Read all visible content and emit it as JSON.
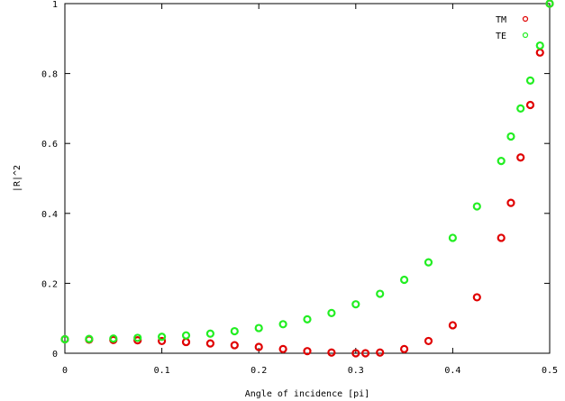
{
  "chart_data": {
    "type": "scatter",
    "title": "",
    "xlabel": "Angle of incidence [pi]",
    "ylabel": "|R|^2",
    "xlim": [
      0,
      0.5
    ],
    "ylim": [
      0,
      1
    ],
    "xticks": [
      "0",
      "0.1",
      "0.2",
      "0.3",
      "0.4",
      "0.5"
    ],
    "yticks": [
      "0",
      "0.2",
      "0.4",
      "0.6",
      "0.8",
      "1"
    ],
    "grid": false,
    "legend_position": "top-right",
    "series": [
      {
        "name": "TM",
        "color": "#e00000",
        "marker": "circle",
        "x": [
          0.0,
          0.025,
          0.05,
          0.075,
          0.1,
          0.125,
          0.15,
          0.175,
          0.2,
          0.225,
          0.25,
          0.275,
          0.3,
          0.31,
          0.325,
          0.35,
          0.375,
          0.4,
          0.425,
          0.45,
          0.46,
          0.47,
          0.48,
          0.49,
          0.5
        ],
        "y": [
          0.04,
          0.039,
          0.038,
          0.037,
          0.035,
          0.032,
          0.028,
          0.023,
          0.018,
          0.012,
          0.006,
          0.002,
          0.0,
          0.0,
          0.002,
          0.012,
          0.035,
          0.08,
          0.16,
          0.33,
          0.43,
          0.56,
          0.71,
          0.86,
          1.0
        ]
      },
      {
        "name": "TE",
        "color": "#22ee22",
        "marker": "circle",
        "x": [
          0.0,
          0.025,
          0.05,
          0.075,
          0.1,
          0.125,
          0.15,
          0.175,
          0.2,
          0.225,
          0.25,
          0.275,
          0.3,
          0.325,
          0.35,
          0.375,
          0.4,
          0.425,
          0.45,
          0.46,
          0.47,
          0.48,
          0.49,
          0.5
        ],
        "y": [
          0.04,
          0.041,
          0.042,
          0.044,
          0.047,
          0.051,
          0.056,
          0.063,
          0.072,
          0.083,
          0.097,
          0.115,
          0.14,
          0.17,
          0.21,
          0.26,
          0.33,
          0.42,
          0.55,
          0.62,
          0.7,
          0.78,
          0.88,
          1.0
        ]
      }
    ]
  }
}
